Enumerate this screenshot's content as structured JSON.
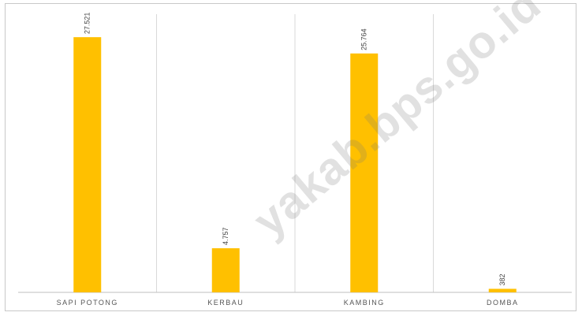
{
  "chart_data": {
    "type": "bar",
    "categories": [
      "SAPI POTONG",
      "KERBAU",
      "KAMBING",
      "DOMBA"
    ],
    "values": [
      27521,
      4757,
      25764,
      382
    ],
    "value_labels": [
      "27.521",
      "4.757",
      "25.764",
      "382"
    ],
    "title": "",
    "xlabel": "",
    "ylabel": "",
    "ylim": [
      0,
      30000
    ],
    "grid": "vertical category separators",
    "legend": "none",
    "bar_color": "#FFC000"
  },
  "watermark": "yakab.bps.go.id"
}
